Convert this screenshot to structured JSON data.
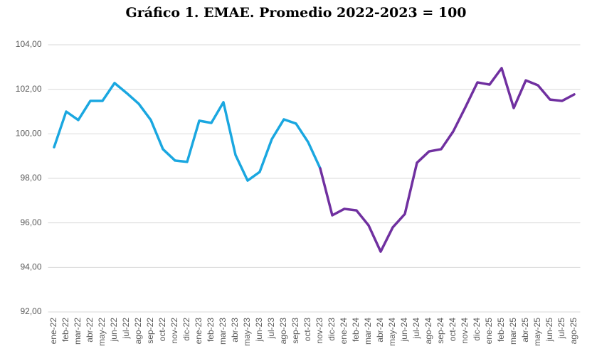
{
  "chart_data": {
    "type": "line",
    "title": "Gráfico 1. EMAE. Promedio 2022-2023 = 100",
    "categories": [
      "ene-22",
      "feb-22",
      "mar-22",
      "abr-22",
      "may-22",
      "jun-22",
      "jul-22",
      "ago-22",
      "sep-22",
      "oct-22",
      "nov-22",
      "dic-22",
      "ene-23",
      "feb-23",
      "mar-23",
      "abr-23",
      "may-23",
      "jun-23",
      "jul-23",
      "ago-23",
      "sep-23",
      "oct-23",
      "nov-23",
      "dic-23",
      "ene-24",
      "feb-24",
      "mar-24",
      "abr-24",
      "may-24",
      "jun-24",
      "jul-24",
      "ago-24",
      "sep-24",
      "oct-24",
      "nov-24",
      "dic-24",
      "ene-25",
      "feb-25",
      "mar-25",
      "abr-25",
      "may-25",
      "jun-25",
      "jul-25",
      "ago-25"
    ],
    "series": [
      {
        "color": "#1aa7e0",
        "values": [
          99.4,
          101.0,
          100.62,
          101.48,
          101.48,
          102.28,
          101.83,
          101.35,
          100.62,
          99.31,
          98.8,
          98.74,
          100.59,
          100.49,
          101.42,
          99.05,
          97.9,
          98.29,
          99.76,
          100.65,
          100.46,
          99.63,
          98.45,
          null,
          null,
          null,
          null,
          null,
          null,
          null,
          null,
          null,
          null,
          null,
          null,
          null,
          null,
          null,
          null,
          null,
          null,
          null,
          null,
          null
        ]
      },
      {
        "color": "#7030a0",
        "values": [
          null,
          null,
          null,
          null,
          null,
          null,
          null,
          null,
          null,
          null,
          null,
          null,
          null,
          null,
          null,
          null,
          null,
          null,
          null,
          null,
          null,
          null,
          98.45,
          96.34,
          96.63,
          96.56,
          95.89,
          94.71,
          95.8,
          96.4,
          98.7,
          99.21,
          99.31,
          100.11,
          101.19,
          102.31,
          102.21,
          102.95,
          101.16,
          102.4,
          102.18,
          101.54,
          101.48,
          101.77
        ]
      }
    ],
    "ylim": [
      92,
      104
    ],
    "yticks": [
      {
        "value": 92,
        "label": "92,00"
      },
      {
        "value": 94,
        "label": "94,00"
      },
      {
        "value": 96,
        "label": "96,00"
      },
      {
        "value": 98,
        "label": "98,00"
      },
      {
        "value": 100,
        "label": "100,00"
      },
      {
        "value": 102,
        "label": "102,00"
      },
      {
        "value": 104,
        "label": "104,00"
      }
    ],
    "grid": true
  }
}
